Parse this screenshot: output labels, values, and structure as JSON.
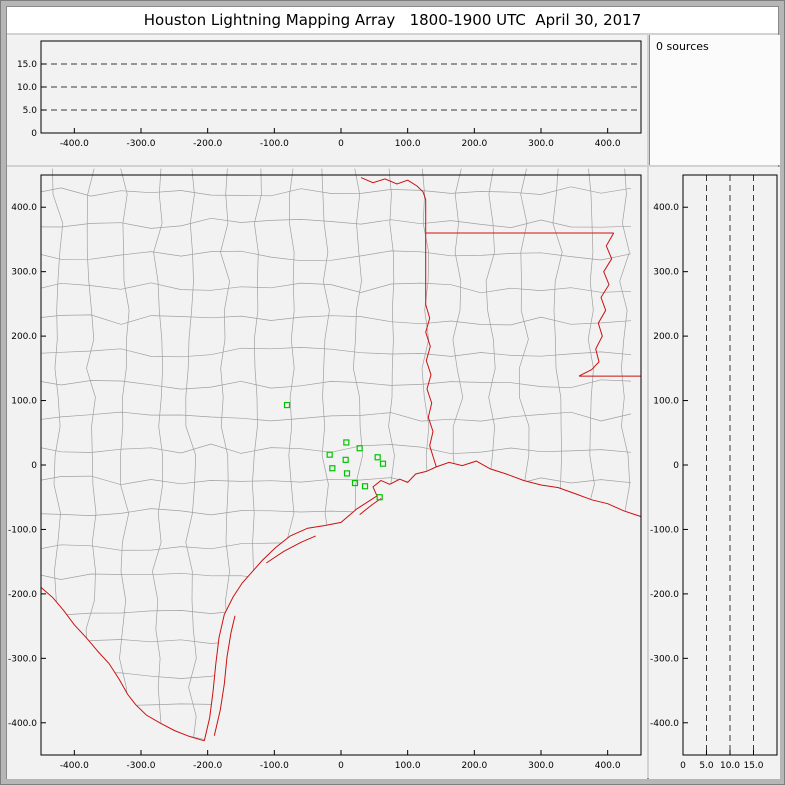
{
  "window": {
    "title": "Houston Lightning Mapping Array   1800-1900 UTC  April 30, 2017"
  },
  "sources_panel": {
    "label": "0 sources"
  },
  "colors": {
    "axis": "#000000",
    "gridline": "#3a3a3a",
    "county": "#a0a0a0",
    "state": "#cc1111",
    "station": "#00c400",
    "panel_bg": "#f2f2f2",
    "titlebar_bg": "#ffffff",
    "frame": "#b6b6b6"
  },
  "chart_data": [
    {
      "id": "altitude-vs-eastwest",
      "type": "scatter",
      "title": "",
      "points": [],
      "xlim": [
        -450,
        450
      ],
      "ylim": [
        0,
        20
      ],
      "x_ticks": {
        "values": [
          -400,
          -300,
          -200,
          -100,
          0,
          100,
          200,
          300,
          400
        ],
        "labels": [
          "-400.0",
          "-300.0",
          "-200.0",
          "-100.0",
          "0",
          "100.0",
          "200.0",
          "300.0",
          "400.0"
        ]
      },
      "y_ticks": {
        "values": [
          0,
          5,
          10,
          15
        ],
        "labels": [
          "0",
          "5.0",
          "10.0",
          "15.0"
        ]
      },
      "gridlines_y": [
        5,
        10,
        15
      ],
      "grid_style": "dashed",
      "legend": "none"
    },
    {
      "id": "plan-view-map",
      "type": "scatter",
      "title": "",
      "xlim": [
        -450,
        450
      ],
      "ylim": [
        -450,
        450
      ],
      "x_ticks": {
        "values": [
          -400,
          -300,
          -200,
          -100,
          0,
          100,
          200,
          300,
          400
        ],
        "labels": [
          "-400.0",
          "-300.0",
          "-200.0",
          "-100.0",
          "0",
          "100.0",
          "200.0",
          "300.0",
          "400.0"
        ]
      },
      "y_ticks": {
        "values": [
          400,
          300,
          200,
          100,
          0,
          -100,
          -200,
          -300,
          -400
        ],
        "labels": [
          "400.0",
          "300.0",
          "200.0",
          "100.0",
          "0",
          "-100.0",
          "-200.0",
          "-300.0",
          "-400.0"
        ]
      },
      "stations": [
        [
          -81,
          93
        ],
        [
          8,
          35
        ],
        [
          28,
          26
        ],
        [
          -17,
          16
        ],
        [
          7,
          8
        ],
        [
          55,
          12
        ],
        [
          63,
          2
        ],
        [
          -13,
          -5
        ],
        [
          9,
          -13
        ],
        [
          21,
          -28
        ],
        [
          36,
          -33
        ],
        [
          58,
          -50
        ]
      ],
      "county_grid": {
        "spacing": 50,
        "jitter": 8,
        "seed": 7,
        "step": 45
      },
      "geo": {
        "state_lines": [
          {
            "name": "rio-grande",
            "pts": [
              [
                -450,
                -190
              ],
              [
                -432,
                -206
              ],
              [
                -416,
                -226
              ],
              [
                -400,
                -248
              ],
              [
                -382,
                -268
              ],
              [
                -364,
                -290
              ],
              [
                -348,
                -308
              ],
              [
                -333,
                -332
              ],
              [
                -320,
                -356
              ],
              [
                -308,
                -372
              ],
              [
                -292,
                -388
              ],
              [
                -272,
                -400
              ],
              [
                -250,
                -412
              ],
              [
                -228,
                -421
              ],
              [
                -205,
                -428
              ]
            ]
          },
          {
            "name": "gulf-coast",
            "pts": [
              [
                -205,
                -428
              ],
              [
                -197,
                -392
              ],
              [
                -192,
                -352
              ],
              [
                -188,
                -310
              ],
              [
                -183,
                -268
              ],
              [
                -175,
                -232
              ],
              [
                -162,
                -205
              ],
              [
                -148,
                -183
              ],
              [
                -130,
                -162
              ],
              [
                -118,
                -148
              ],
              [
                -98,
                -128
              ],
              [
                -76,
                -110
              ],
              [
                -50,
                -98
              ],
              [
                -25,
                -94
              ],
              [
                0,
                -89
              ],
              [
                24,
                -68
              ],
              [
                54,
                -48
              ],
              [
                48,
                -34
              ],
              [
                60,
                -24
              ],
              [
                73,
                -30
              ],
              [
                88,
                -22
              ],
              [
                100,
                -27
              ],
              [
                112,
                -14
              ],
              [
                128,
                -10
              ],
              [
                143,
                -3
              ],
              [
                162,
                4
              ],
              [
                182,
                -1
              ],
              [
                203,
                6
              ],
              [
                224,
                -6
              ],
              [
                248,
                -14
              ],
              [
                274,
                -24
              ],
              [
                300,
                -31
              ],
              [
                326,
                -35
              ],
              [
                350,
                -44
              ],
              [
                376,
                -54
              ],
              [
                400,
                -60
              ],
              [
                424,
                -71
              ],
              [
                450,
                -80
              ]
            ]
          },
          {
            "name": "padre-island",
            "pts": [
              [
                -190,
                -420
              ],
              [
                -181,
                -380
              ],
              [
                -175,
                -340
              ],
              [
                -171,
                -298
              ],
              [
                -165,
                -260
              ],
              [
                -159,
                -234
              ]
            ]
          },
          {
            "name": "matagorda-island",
            "pts": [
              [
                -112,
                -152
              ],
              [
                -86,
                -134
              ],
              [
                -60,
                -120
              ],
              [
                -38,
                -110
              ]
            ]
          },
          {
            "name": "galveston-island",
            "pts": [
              [
                28,
                -77
              ],
              [
                46,
                -62
              ],
              [
                60,
                -52
              ]
            ]
          },
          {
            "name": "red-river",
            "pts": [
              [
                30,
                446
              ],
              [
                48,
                438
              ],
              [
                66,
                444
              ],
              [
                84,
                436
              ],
              [
                100,
                442
              ],
              [
                114,
                433
              ],
              [
                123,
                424
              ],
              [
                127,
                412
              ]
            ]
          },
          {
            "name": "tx-ar-la-border",
            "pts": [
              [
                127,
                412
              ],
              [
                127,
                249
              ]
            ]
          },
          {
            "name": "ar-la-border",
            "pts": [
              [
                127,
                360
              ],
              [
                409,
                360
              ]
            ]
          },
          {
            "name": "mississippi-river",
            "pts": [
              [
                409,
                360
              ],
              [
                398,
                340
              ],
              [
                406,
                320
              ],
              [
                394,
                300
              ],
              [
                402,
                280
              ],
              [
                390,
                260
              ],
              [
                397,
                240
              ],
              [
                386,
                220
              ],
              [
                392,
                200
              ],
              [
                382,
                180
              ],
              [
                387,
                160
              ],
              [
                376,
                148
              ],
              [
                357,
                138
              ]
            ]
          },
          {
            "name": "la-ms-border",
            "pts": [
              [
                357,
                138
              ],
              [
                450,
                138
              ]
            ]
          },
          {
            "name": "sabine-river",
            "pts": [
              [
                127,
                249
              ],
              [
                133,
                228
              ],
              [
                127,
                206
              ],
              [
                134,
                184
              ],
              [
                128,
                162
              ],
              [
                135,
                140
              ],
              [
                129,
                118
              ],
              [
                136,
                96
              ],
              [
                131,
                74
              ],
              [
                138,
                52
              ],
              [
                133,
                30
              ],
              [
                139,
                10
              ],
              [
                143,
                -3
              ]
            ]
          }
        ]
      }
    },
    {
      "id": "altitude-vs-northsouth",
      "type": "scatter",
      "title": "",
      "points": [],
      "xlim": [
        0,
        20
      ],
      "ylim": [
        -450,
        450
      ],
      "x_ticks": {
        "values": [
          0,
          5,
          10,
          15
        ],
        "labels": [
          "0",
          "5.0",
          "10.0",
          "15.0"
        ]
      },
      "y_ticks": {
        "values": [
          400,
          300,
          200,
          100,
          0,
          -100,
          -200,
          -300,
          -400
        ],
        "labels": [
          "400.0",
          "300.0",
          "200.0",
          "100.0",
          "0",
          "-100.0",
          "-200.0",
          "-300.0",
          "-400.0"
        ]
      },
      "gridlines_x": [
        5,
        10,
        15
      ],
      "grid_style": "dashed",
      "legend": "none"
    }
  ]
}
